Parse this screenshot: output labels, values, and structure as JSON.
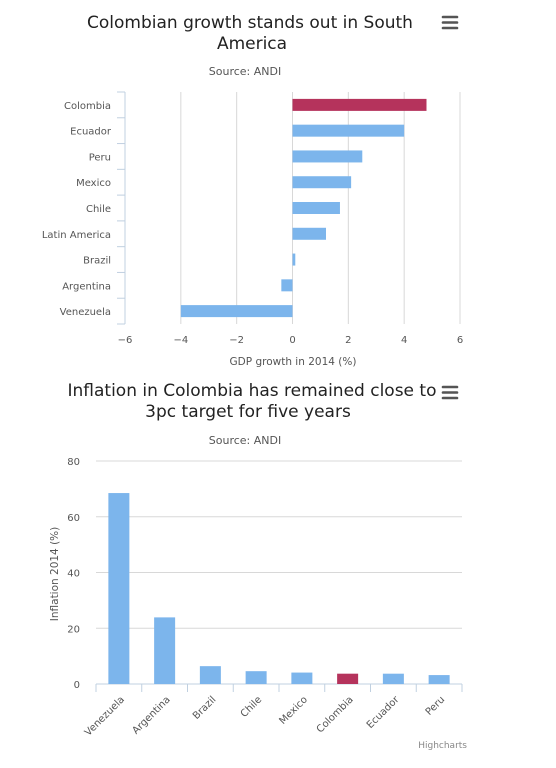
{
  "chart_data": [
    {
      "type": "bar",
      "orientation": "horizontal",
      "title": "Colombian growth stands out in South America",
      "title_lines": [
        "Colombian growth stands out in South",
        "America"
      ],
      "subtitle": "Source: ANDI",
      "categories": [
        "Colombia",
        "Ecuador",
        "Peru",
        "Mexico",
        "Chile",
        "Latin America",
        "Brazil",
        "Argentina",
        "Venezuela"
      ],
      "values": [
        4.8,
        4.0,
        2.5,
        2.1,
        1.7,
        1.2,
        0.1,
        -0.4,
        -4.0
      ],
      "highlight": "Colombia",
      "xlabel": "GDP growth in 2014 (%)",
      "ylabel": "",
      "xlim": [
        -6,
        6
      ],
      "ticks": [
        -6,
        -4,
        -2,
        0,
        2,
        4,
        6
      ],
      "tick_labels": [
        "−6",
        "−4",
        "−2",
        "0",
        "2",
        "4",
        "6"
      ],
      "grid": true,
      "colors": {
        "bar": "#7cb5ec",
        "highlight": "#b5335c"
      }
    },
    {
      "type": "bar",
      "orientation": "vertical",
      "title": "Inflation in Colombia has remained close to 3pc target for five years",
      "title_lines": [
        "Inflation in Colombia has remained close to",
        "3pc target for five years"
      ],
      "subtitle": "Source: ANDI",
      "categories": [
        "Venezuela",
        "Argentina",
        "Brazil",
        "Chile",
        "Mexico",
        "Colombia",
        "Ecuador",
        "Peru"
      ],
      "values": [
        68.5,
        23.9,
        6.4,
        4.6,
        4.1,
        3.7,
        3.7,
        3.2
      ],
      "highlight": "Colombia",
      "xlabel": "",
      "ylabel": "Inflation 2014 (%)",
      "ylim": [
        0,
        80
      ],
      "ticks": [
        0,
        20,
        40,
        60,
        80
      ],
      "grid": true,
      "colors": {
        "bar": "#7cb5ec",
        "highlight": "#b5335c"
      }
    }
  ],
  "credits": "Highcharts",
  "menu_icon": "hamburger-menu-icon"
}
